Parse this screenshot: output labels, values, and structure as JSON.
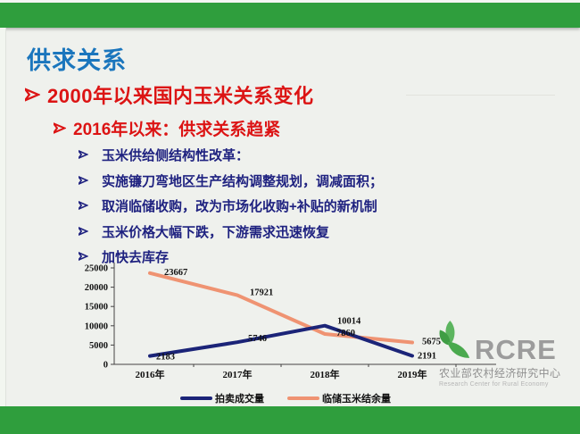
{
  "slide": {
    "title": "供求关系",
    "bullets": {
      "level1": "2000年以来国内玉米关系变化",
      "level2": "2016年以来：供求关系趋紧",
      "level3": [
        "玉米供给侧结构性改革：",
        "实施镰刀弯地区生产结构调整规划，调减面积；",
        "取消临储收购，改为市场化收购+补贴的新机制",
        "玉米价格大幅下跌，下游需求迅速恢复",
        "加快去库存"
      ]
    }
  },
  "chart_data": {
    "type": "line",
    "categories": [
      "2016年",
      "2017年",
      "2018年",
      "2019年"
    ],
    "series": [
      {
        "name": "拍卖成交量",
        "color": "#1b2478",
        "values": [
          2183,
          5746,
          10014,
          2191
        ]
      },
      {
        "name": "临储玉米结余量",
        "color": "#ef9372",
        "values": [
          23667,
          17921,
          7860,
          5675
        ]
      }
    ],
    "ylim": [
      0,
      25000
    ],
    "yticks": [
      0,
      5000,
      10000,
      15000,
      20000,
      25000
    ],
    "grid": false,
    "legend_position": "bottom"
  },
  "logo": {
    "acronym": "RCRE",
    "name_cn": "农业部农村经济研究中心",
    "name_en": "Research Center for Rural Economy"
  },
  "colors": {
    "band_green": "#2f9e3d",
    "title_blue": "#1b76bd",
    "bullet_red": "#dc1414",
    "bullet_navy": "#1f2280",
    "line_blue": "#1b2478",
    "line_orange": "#ef9372",
    "logo_green": "#4aa94e"
  }
}
